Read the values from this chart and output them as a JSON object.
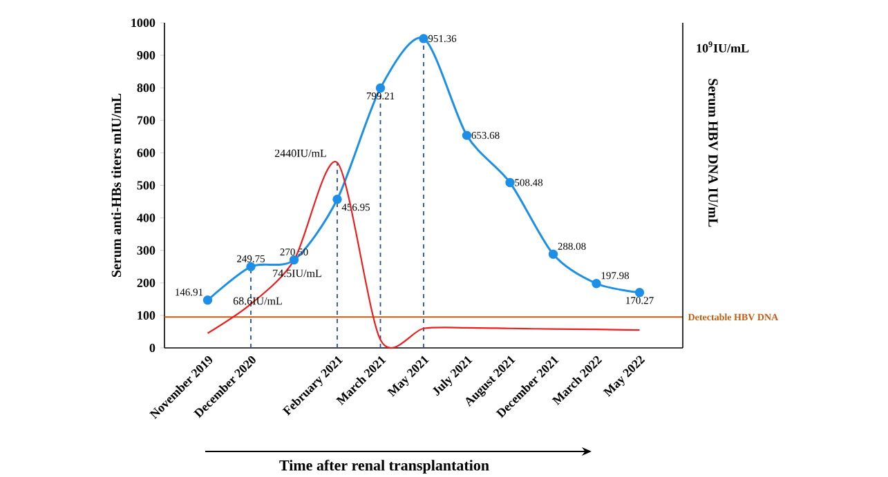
{
  "chart_data": {
    "type": "line",
    "xlabel": "Time after renal transplantation",
    "ylabel": "Serum anti-HBs  titers  mIU/mL",
    "y2label": "Serum HBV DNA  IU/mL",
    "categories": [
      "November 2019",
      "December 2020",
      null,
      "February 2021",
      "March 2021",
      "May 2021",
      "July 2021",
      "August 2021",
      "December 2021",
      "March 2022",
      "May 2022"
    ],
    "series": [
      {
        "color": "#1e8fe6",
        "marker": "circle",
        "values": [
          146.91,
          249.75,
          270.5,
          456.95,
          799.21,
          951.36,
          653.68,
          508.48,
          288.08,
          197.98,
          170.27
        ],
        "value_labels": [
          "146.91",
          "249.75",
          "270.50",
          "456.95",
          "799.21",
          "951.36",
          "653.68",
          "508.48",
          "288.08",
          "197.98",
          "170.27"
        ]
      },
      {
        "color": "#ee1c1c",
        "marker": "none",
        "values": [
          45,
          135,
          270,
          570,
          25,
          60,
          62,
          60,
          58,
          57,
          55
        ]
      }
    ],
    "ylim": [
      0,
      1000
    ],
    "yticks": [
      0,
      100,
      200,
      300,
      400,
      500,
      600,
      700,
      800,
      900,
      1000
    ],
    "annotations": [
      "10$^{9}$IU/mL",
      "68.6IU/mL",
      "74.5IU/mL",
      "2440IU/mL"
    ],
    "ref_lines": [
      {
        "axis": "y",
        "value": 95,
        "label": "Detectable HBV DNA",
        "color": "#c55a11"
      },
      {
        "axis": "x",
        "value": "December 2020",
        "line_style": "dashed",
        "color": "#2a4f9e"
      },
      {
        "axis": "x",
        "value": "February 2021",
        "line_style": "dashed",
        "color": "#2a4f9e"
      },
      {
        "axis": "x",
        "value": "March 2021",
        "line_style": "dashed",
        "color": "#2a4f9e"
      },
      {
        "axis": "x",
        "value": "May 2021",
        "line_style": "dashed",
        "color": "#2a4f9e"
      }
    ],
    "legend": false,
    "grid": false
  }
}
